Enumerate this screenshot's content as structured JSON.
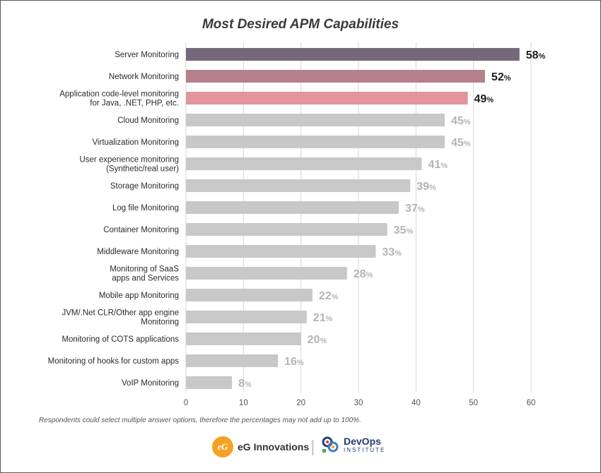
{
  "chart_data": {
    "type": "bar",
    "orientation": "horizontal",
    "title": "Most Desired APM Capabilities",
    "categories": [
      [
        "Server Monitoring"
      ],
      [
        "Network Monitoring"
      ],
      [
        "Application code-level monitoring",
        "for Java, .NET, PHP, etc."
      ],
      [
        "Cloud Monitoring"
      ],
      [
        "Virtualization Monitoring"
      ],
      [
        "User experience monitoring",
        "(Synthetic/real user)"
      ],
      [
        "Storage Monitoring"
      ],
      [
        "Log file Monitoring"
      ],
      [
        "Container Monitoring"
      ],
      [
        "Middleware Monitoring"
      ],
      [
        "Monitoring of SaaS",
        "apps and Services"
      ],
      [
        "Mobile app Monitoring"
      ],
      [
        "JVM/.Net CLR/Other app engine",
        "Monitoring"
      ],
      [
        "Monitoring of COTS applications"
      ],
      [
        "Monitoring of hooks for custom apps"
      ],
      [
        "VoIP Monitoring"
      ]
    ],
    "values": [
      58,
      52,
      49,
      45,
      45,
      41,
      39,
      37,
      35,
      33,
      28,
      22,
      21,
      20,
      16,
      8
    ],
    "value_suffix": "%",
    "bar_colors": [
      "#74687a",
      "#b5808c",
      "#e4949c",
      "#c9c8c8",
      "#c9c8c8",
      "#c9c8c8",
      "#c9c8c8",
      "#c9c8c8",
      "#c9c8c8",
      "#c9c8c8",
      "#c9c8c8",
      "#c9c8c8",
      "#c9c8c8",
      "#c9c8c8",
      "#c9c8c8",
      "#c9c8c8"
    ],
    "label_colors": [
      "#1e1e1e",
      "#1e1e1e",
      "#1e1e1e",
      "#b4b4b4",
      "#b4b4b4",
      "#b4b4b4",
      "#b4b4b4",
      "#b4b4b4",
      "#b4b4b4",
      "#b4b4b4",
      "#b4b4b4",
      "#b4b4b4",
      "#b4b4b4",
      "#b4b4b4",
      "#b4b4b4",
      "#b4b4b4"
    ],
    "xlim": [
      0,
      60
    ],
    "xticks": [
      0,
      10,
      20,
      30,
      40,
      50,
      60
    ],
    "grid": true,
    "gridline_color": "#d6d6d6"
  },
  "footnote": "Respondents could select multiple answer options, therefore the percentages may not add up to 100%.",
  "logos": {
    "eg_mark": "eG",
    "eg_name": "eG Innovations",
    "devops_name": "DevOps",
    "devops_sub": "INSTITUTE"
  }
}
